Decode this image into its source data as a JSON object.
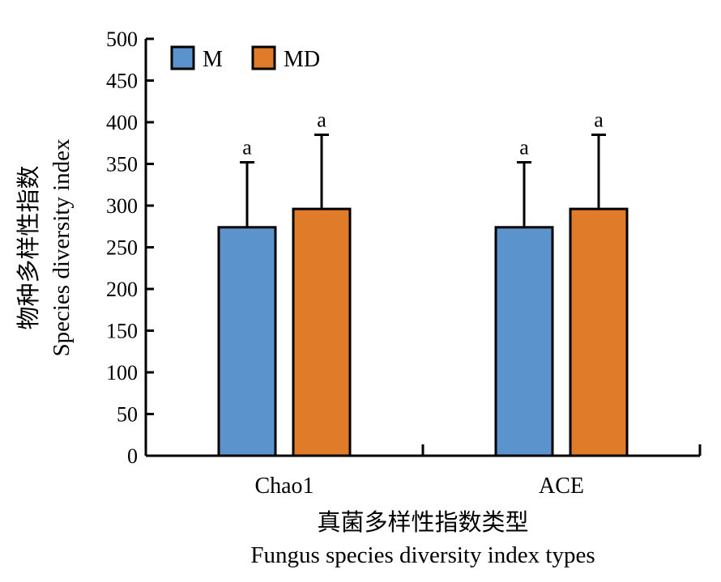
{
  "chart_data": {
    "type": "bar",
    "categories": [
      "Chao1",
      "ACE"
    ],
    "series": [
      {
        "name": "M",
        "color": "#5b93cc",
        "values": [
          274,
          274
        ],
        "errors": [
          78,
          78
        ],
        "significance": [
          "a",
          "a"
        ]
      },
      {
        "name": "MD",
        "color": "#e07b29",
        "values": [
          296,
          296
        ],
        "errors": [
          89,
          89
        ],
        "significance": [
          "a",
          "a"
        ]
      }
    ],
    "xlabel_cn": "真菌多样性指数类型",
    "xlabel_en": "Fungus species diversity index types",
    "ylabel_cn": "物种多样性指数",
    "ylabel_en": "Species diversity index",
    "ylim": [
      0,
      500
    ],
    "yticks": [
      0,
      50,
      100,
      150,
      200,
      250,
      300,
      350,
      400,
      450,
      500
    ],
    "legend_position": "top-left",
    "grid": false
  }
}
